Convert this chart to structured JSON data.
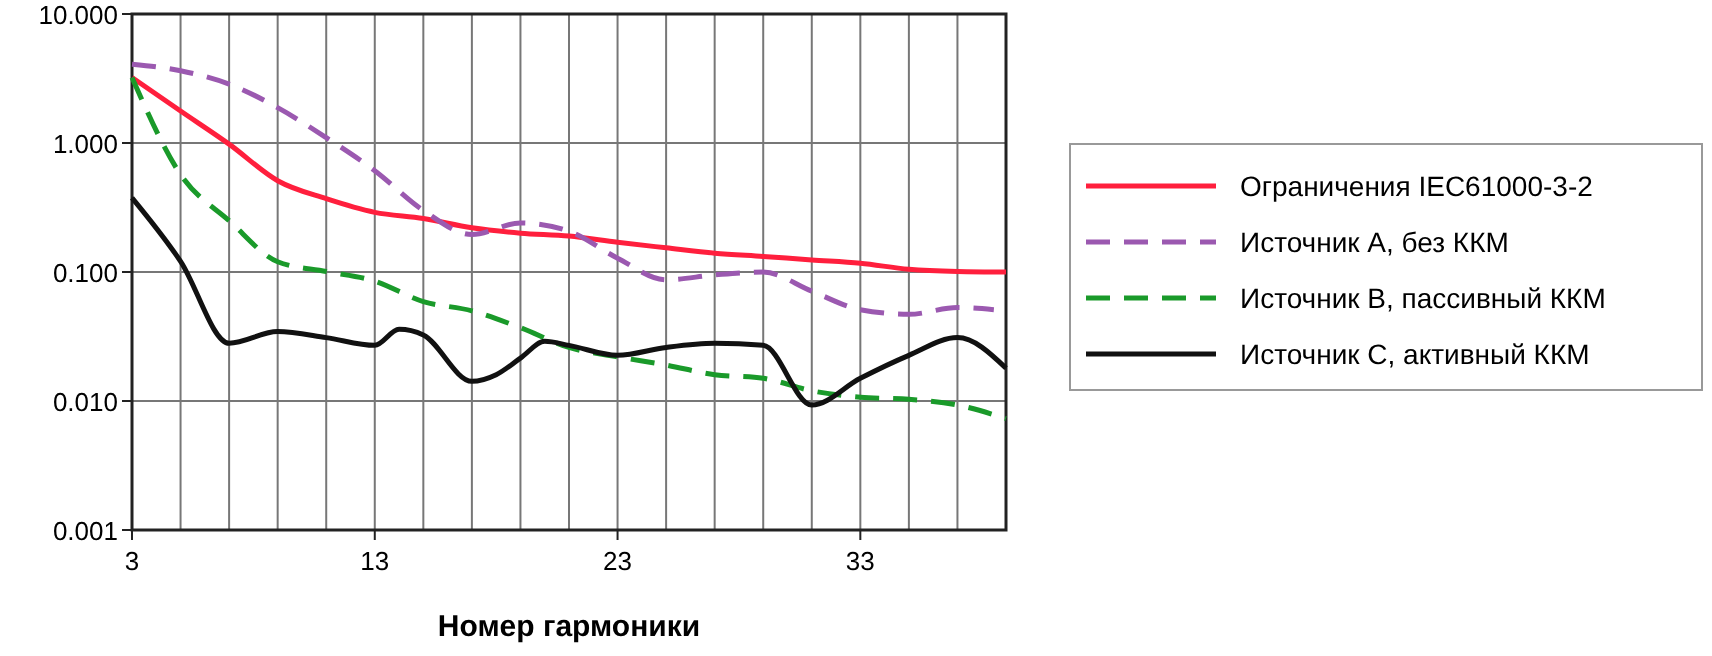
{
  "chart_data": {
    "type": "line",
    "xlabel": "Номер гармоники",
    "log": "y",
    "grid": true,
    "legend": "right",
    "marker": "none",
    "xlim": [
      3,
      39
    ],
    "ylim": [
      0.001,
      10
    ],
    "xticks": [
      3,
      {
        "value": 5,
        "label": null
      },
      {
        "value": 7,
        "label": null
      },
      {
        "value": 9,
        "label": null
      },
      {
        "value": 11,
        "label": null
      },
      13,
      {
        "value": 15,
        "label": null
      },
      {
        "value": 17,
        "label": null
      },
      {
        "value": 19,
        "label": null
      },
      {
        "value": 21,
        "label": null
      },
      23,
      {
        "value": 25,
        "label": null
      },
      {
        "value": 27,
        "label": null
      },
      {
        "value": 29,
        "label": null
      },
      {
        "value": 31,
        "label": null
      },
      33,
      {
        "value": 35,
        "label": null
      },
      {
        "value": 37,
        "label": null
      },
      {
        "value": 39,
        "label": null
      }
    ],
    "yticks": [
      {
        "value": 0.001,
        "label": "0.001"
      },
      {
        "value": 0.01,
        "label": "0.010"
      },
      {
        "value": 0.1,
        "label": "0.100"
      },
      {
        "value": 1,
        "label": "1.000"
      },
      {
        "value": 10,
        "label": "10.000"
      }
    ],
    "series": [
      {
        "name": "Ограничения IEC61000-3-2",
        "color": "#ff1f3d",
        "line_style": "solid",
        "x": [
          3,
          5,
          7,
          9,
          11,
          13,
          15,
          17,
          19,
          21,
          23,
          25,
          27,
          29,
          31,
          33,
          35,
          37,
          39
        ],
        "values": [
          3.22,
          1.77,
          0.98,
          0.51,
          0.37,
          0.29,
          0.26,
          0.22,
          0.2,
          0.19,
          0.17,
          0.154,
          0.14,
          0.132,
          0.124,
          0.117,
          0.105,
          0.101,
          0.1
        ]
      },
      {
        "name": "Источник А, без ККМ",
        "color": "#9b59b0",
        "line_style": "dashed",
        "x": [
          3,
          5,
          7,
          9,
          11,
          13,
          15,
          17,
          19,
          21,
          23,
          25,
          27,
          29,
          31,
          33,
          35,
          37,
          38.5
        ],
        "values": [
          4.08,
          3.63,
          2.86,
          1.88,
          1.1,
          0.61,
          0.3,
          0.195,
          0.24,
          0.207,
          0.128,
          0.087,
          0.095,
          0.1,
          0.071,
          0.051,
          0.047,
          0.053,
          0.051
        ]
      },
      {
        "name": "Источник В, пассивный ККМ",
        "color": "#1a9a2a",
        "line_style": "dashed",
        "x": [
          3,
          5,
          7,
          9,
          11,
          13,
          15,
          17,
          19,
          21,
          23,
          25,
          27,
          29,
          31,
          33,
          35,
          37,
          39
        ],
        "values": [
          3.22,
          0.57,
          0.25,
          0.12,
          0.101,
          0.085,
          0.059,
          0.05,
          0.037,
          0.026,
          0.022,
          0.019,
          0.016,
          0.015,
          0.012,
          0.0107,
          0.0103,
          0.0093,
          0.0073
        ]
      },
      {
        "name": "Источник С, активный ККМ",
        "color": "#111111",
        "line_style": "solid",
        "x": [
          3,
          5,
          7,
          9,
          11,
          13,
          14,
          15,
          17,
          18,
          19,
          20,
          21,
          23,
          25,
          27,
          29,
          31,
          33,
          35,
          37,
          39
        ],
        "values": [
          0.376,
          0.121,
          0.028,
          0.0345,
          0.031,
          0.027,
          0.036,
          0.0325,
          0.0142,
          0.016,
          0.0215,
          0.029,
          0.027,
          0.0226,
          0.026,
          0.028,
          0.027,
          0.0093,
          0.015,
          0.0226,
          0.031,
          0.018
        ]
      }
    ]
  }
}
